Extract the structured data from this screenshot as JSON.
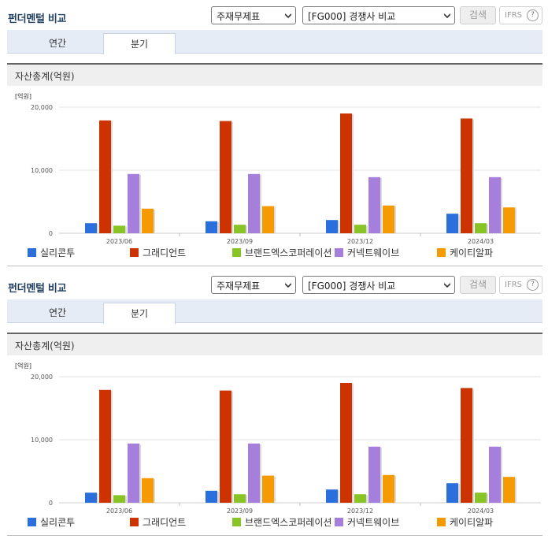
{
  "blocks": [
    {
      "title": "펀더멘털 비교",
      "select1": "주재무제표",
      "select2": "[FG000] 경쟁사 비교",
      "search_label": "검색",
      "ifrs_label": "IFRS",
      "ifrs_help": "?",
      "tabs": [
        "연간",
        "분기"
      ],
      "active_tab": "분기",
      "metric": "자산총계(억원)",
      "chart_data": {
        "type": "bar",
        "unit": "[억원]",
        "categories": [
          "2023/06",
          "2023/09",
          "2023/12",
          "2024/03"
        ],
        "ylim": [
          0,
          20000
        ],
        "yticks": [
          "0",
          "10,000",
          "20,000"
        ],
        "series": [
          {
            "name": "실리콘투",
            "color": "#2a6fdb",
            "values": [
              1600,
              1900,
              2100,
              3100
            ]
          },
          {
            "name": "그래디언트",
            "color": "#cc3300",
            "values": [
              17900,
              17800,
              19000,
              18200
            ]
          },
          {
            "name": "브랜드엑스코퍼레이션",
            "color": "#88c425",
            "values": [
              1200,
              1350,
              1350,
              1600
            ]
          },
          {
            "name": "커넥트웨이브",
            "color": "#a67fdd",
            "values": [
              9400,
              9400,
              8900,
              8900
            ]
          },
          {
            "name": "케이티알파",
            "color": "#f59a00",
            "values": [
              3900,
              4300,
              4400,
              4100
            ]
          }
        ]
      }
    },
    {
      "title": "펀더멘털 비교",
      "select1": "주재무제표",
      "select2": "[FG000] 경쟁사 비교",
      "search_label": "검색",
      "ifrs_label": "IFRS",
      "ifrs_help": "?",
      "tabs": [
        "연간",
        "분기"
      ],
      "active_tab": "분기",
      "metric": "자산총계(억원)",
      "chart_data": {
        "type": "bar",
        "unit": "[억원]",
        "categories": [
          "2023/06",
          "2023/09",
          "2023/12",
          "2024/03"
        ],
        "ylim": [
          0,
          20000
        ],
        "yticks": [
          "0",
          "10,000",
          "20,000"
        ],
        "series": [
          {
            "name": "실리콘투",
            "color": "#2a6fdb",
            "values": [
              1600,
              1900,
              2100,
              3100
            ]
          },
          {
            "name": "그래디언트",
            "color": "#cc3300",
            "values": [
              17900,
              17800,
              19000,
              18200
            ]
          },
          {
            "name": "브랜드엑스코퍼레이션",
            "color": "#88c425",
            "values": [
              1200,
              1350,
              1350,
              1600
            ]
          },
          {
            "name": "커넥트웨이브",
            "color": "#a67fdd",
            "values": [
              9400,
              9400,
              8900,
              8900
            ]
          },
          {
            "name": "케이티알파",
            "color": "#f59a00",
            "values": [
              3900,
              4300,
              4400,
              4100
            ]
          }
        ]
      }
    }
  ]
}
